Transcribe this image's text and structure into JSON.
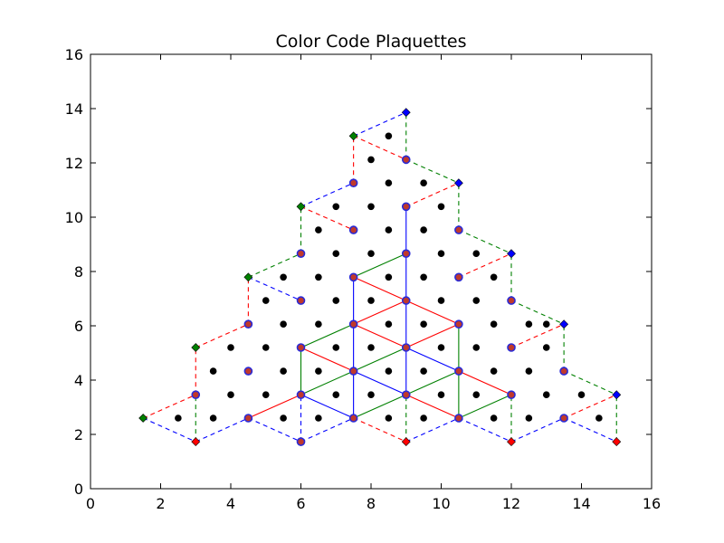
{
  "chart_data": {
    "type": "scatter",
    "title": "Color Code Plaquettes",
    "xlabel": "",
    "ylabel": "",
    "xlim": [
      0,
      16
    ],
    "ylim": [
      0,
      16
    ],
    "xticks": [
      "0",
      "2",
      "4",
      "6",
      "8",
      "10",
      "12",
      "14",
      "16"
    ],
    "yticks": [
      "0",
      "2",
      "4",
      "6",
      "8",
      "10",
      "12",
      "14",
      "16"
    ],
    "grid": false,
    "colors": {
      "red": "#ff0000",
      "green": "#008000",
      "blue": "#0000ff",
      "black": "#000000"
    },
    "series": [
      {
        "marker": "circle",
        "color": "black",
        "points": [
          [
            2.5,
            2.6
          ],
          [
            3.5,
            2.6
          ],
          [
            5.5,
            2.6
          ],
          [
            6.5,
            2.6
          ],
          [
            8.5,
            2.6
          ],
          [
            9.5,
            2.6
          ],
          [
            11.5,
            2.6
          ],
          [
            12.5,
            2.6
          ],
          [
            14.5,
            2.6
          ],
          [
            3.5,
            4.33
          ],
          [
            4.0,
            3.46
          ],
          [
            5.0,
            3.46
          ],
          [
            5.5,
            4.33
          ],
          [
            6.5,
            4.33
          ],
          [
            7.0,
            3.46
          ],
          [
            8.0,
            3.46
          ],
          [
            8.5,
            4.33
          ],
          [
            9.5,
            4.33
          ],
          [
            10.0,
            3.46
          ],
          [
            11.0,
            3.46
          ],
          [
            11.5,
            4.33
          ],
          [
            12.5,
            4.33
          ],
          [
            13.0,
            3.46
          ],
          [
            14.0,
            3.46
          ],
          [
            4.0,
            5.2
          ],
          [
            5.0,
            5.2
          ],
          [
            7.0,
            5.2
          ],
          [
            8.0,
            5.2
          ],
          [
            10.0,
            5.2
          ],
          [
            11.0,
            5.2
          ],
          [
            13.0,
            5.2
          ],
          [
            5.0,
            6.93
          ],
          [
            5.5,
            6.06
          ],
          [
            6.5,
            6.06
          ],
          [
            7.0,
            6.93
          ],
          [
            8.0,
            6.93
          ],
          [
            8.5,
            6.06
          ],
          [
            9.5,
            6.06
          ],
          [
            10.0,
            6.93
          ],
          [
            11.0,
            6.93
          ],
          [
            11.5,
            6.06
          ],
          [
            12.5,
            6.06
          ],
          [
            13.0,
            6.06
          ],
          [
            5.5,
            7.79
          ],
          [
            6.5,
            7.79
          ],
          [
            8.5,
            7.79
          ],
          [
            9.5,
            7.79
          ],
          [
            11.5,
            7.79
          ],
          [
            6.5,
            9.53
          ],
          [
            7.0,
            8.66
          ],
          [
            8.0,
            8.66
          ],
          [
            8.5,
            9.53
          ],
          [
            9.5,
            9.53
          ],
          [
            10.0,
            8.66
          ],
          [
            11.0,
            8.66
          ],
          [
            7.0,
            10.39
          ],
          [
            8.0,
            10.39
          ],
          [
            10.0,
            10.39
          ],
          [
            8.0,
            12.12
          ],
          [
            8.5,
            11.26
          ],
          [
            9.5,
            11.26
          ],
          [
            8.5,
            12.99
          ]
        ]
      },
      {
        "marker": "diamond",
        "color": "green",
        "points": [
          [
            1.5,
            2.6
          ],
          [
            3.0,
            5.2
          ],
          [
            4.5,
            7.79
          ],
          [
            6.0,
            10.39
          ],
          [
            7.5,
            12.99
          ]
        ]
      },
      {
        "marker": "diamond",
        "color": "red",
        "points": [
          [
            3.0,
            1.73
          ],
          [
            6.0,
            1.73
          ],
          [
            9.0,
            1.73
          ],
          [
            12.0,
            1.73
          ],
          [
            15.0,
            1.73
          ]
        ]
      },
      {
        "marker": "diamond",
        "color": "blue",
        "points": [
          [
            9.0,
            13.86
          ],
          [
            10.5,
            11.26
          ],
          [
            12.0,
            8.66
          ],
          [
            13.5,
            6.06
          ],
          [
            15.0,
            3.46
          ]
        ]
      },
      {
        "marker": "circle",
        "color": "vertex",
        "points": [
          [
            3.0,
            3.46
          ],
          [
            4.5,
            2.6
          ],
          [
            4.5,
            4.33
          ],
          [
            4.5,
            6.06
          ],
          [
            6.0,
            1.73
          ],
          [
            6.0,
            3.46
          ],
          [
            6.0,
            5.2
          ],
          [
            6.0,
            6.93
          ],
          [
            6.0,
            8.66
          ],
          [
            7.5,
            2.6
          ],
          [
            7.5,
            4.33
          ],
          [
            7.5,
            6.06
          ],
          [
            7.5,
            7.79
          ],
          [
            7.5,
            9.53
          ],
          [
            7.5,
            11.26
          ],
          [
            9.0,
            3.46
          ],
          [
            9.0,
            5.2
          ],
          [
            9.0,
            6.93
          ],
          [
            9.0,
            8.66
          ],
          [
            9.0,
            10.39
          ],
          [
            9.0,
            12.12
          ],
          [
            10.5,
            2.6
          ],
          [
            10.5,
            4.33
          ],
          [
            10.5,
            6.06
          ],
          [
            10.5,
            7.79
          ],
          [
            10.5,
            9.53
          ],
          [
            12.0,
            3.46
          ],
          [
            12.0,
            5.2
          ],
          [
            12.0,
            6.93
          ],
          [
            13.5,
            2.6
          ],
          [
            13.5,
            4.33
          ]
        ]
      }
    ]
  }
}
